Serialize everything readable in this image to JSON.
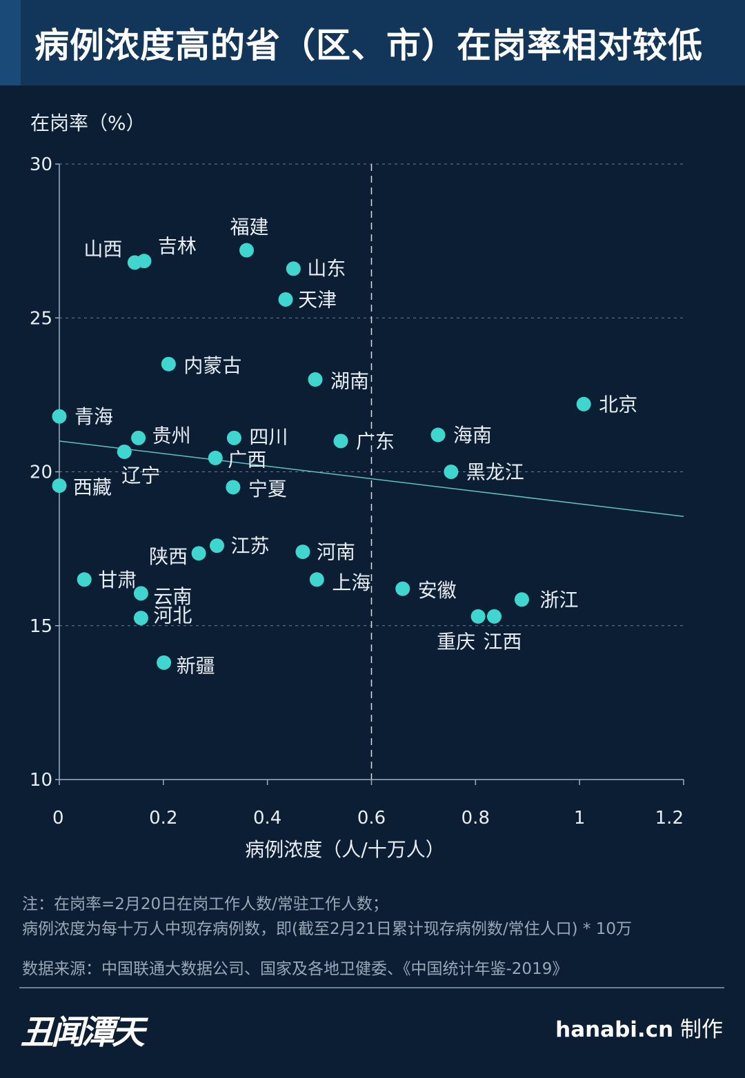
{
  "title": "病例浓度高的省（区、市）在岗率相对较低",
  "chart_data": {
    "type": "scatter",
    "ylabel": "在岗率（%）",
    "xlabel": "病例浓度（人/十万人）",
    "xlim": [
      0,
      1.2
    ],
    "ylim": [
      10,
      30
    ],
    "xticks": [
      "0",
      "0.2",
      "0.4",
      "0.6",
      "0.8",
      "1",
      "1.2"
    ],
    "yticks": [
      "10",
      "15",
      "20",
      "25",
      "30"
    ],
    "reference_line_x": 0.6,
    "trendline": {
      "x": [
        0,
        1.2
      ],
      "y": [
        21.0,
        18.55
      ]
    },
    "points": [
      {
        "label": "福建",
        "x": 0.36,
        "y": 27.2
      },
      {
        "label": "山西",
        "x": 0.145,
        "y": 26.8
      },
      {
        "label": "吉林",
        "x": 0.163,
        "y": 26.85
      },
      {
        "label": "山东",
        "x": 0.45,
        "y": 26.6
      },
      {
        "label": "天津",
        "x": 0.435,
        "y": 25.6
      },
      {
        "label": "内蒙古",
        "x": 0.21,
        "y": 23.5
      },
      {
        "label": "湖南",
        "x": 0.492,
        "y": 23.0
      },
      {
        "label": "北京",
        "x": 1.008,
        "y": 22.2
      },
      {
        "label": "青海",
        "x": 0.0,
        "y": 21.8
      },
      {
        "label": "贵州",
        "x": 0.152,
        "y": 21.1
      },
      {
        "label": "四川",
        "x": 0.336,
        "y": 21.1
      },
      {
        "label": "海南",
        "x": 0.728,
        "y": 21.2
      },
      {
        "label": "广东",
        "x": 0.541,
        "y": 21.0
      },
      {
        "label": "辽宁",
        "x": 0.125,
        "y": 20.65
      },
      {
        "label": "广西",
        "x": 0.3,
        "y": 20.45
      },
      {
        "label": "黑龙江",
        "x": 0.753,
        "y": 20.0
      },
      {
        "label": "西藏",
        "x": 0.0,
        "y": 19.55
      },
      {
        "label": "宁夏",
        "x": 0.334,
        "y": 19.5
      },
      {
        "label": "江苏",
        "x": 0.303,
        "y": 17.6
      },
      {
        "label": "陕西",
        "x": 0.268,
        "y": 17.35
      },
      {
        "label": "河南",
        "x": 0.468,
        "y": 17.4
      },
      {
        "label": "甘肃",
        "x": 0.048,
        "y": 16.5
      },
      {
        "label": "上海",
        "x": 0.495,
        "y": 16.5
      },
      {
        "label": "安徽",
        "x": 0.66,
        "y": 16.2
      },
      {
        "label": "云南",
        "x": 0.157,
        "y": 16.05
      },
      {
        "label": "浙江",
        "x": 0.889,
        "y": 15.85
      },
      {
        "label": "河北",
        "x": 0.157,
        "y": 15.25
      },
      {
        "label": "重庆",
        "x": 0.805,
        "y": 15.3
      },
      {
        "label": "江西",
        "x": 0.836,
        "y": 15.3
      },
      {
        "label": "新疆",
        "x": 0.201,
        "y": 13.8
      }
    ],
    "grid": "horizontal dashed",
    "legend": "none"
  },
  "notes": {
    "line1": "注：在岗率=2月20日在岗工作人数/常驻工作人数；",
    "line2": "病例浓度为每十万人中现存病例数，即(截至2月21日累计现存病例数/常住人口) * 10万",
    "source": "数据来源：中国联通大数据公司、国家及各地卫健委、《中国统计年鉴-2019》"
  },
  "footer": {
    "logo": "丑闻潭天",
    "site": "hanabi.cn",
    "credit": "制作"
  },
  "colors": {
    "background": "#0c1e33",
    "header": "#12355a",
    "point": "#3fd6cf",
    "trendline": "#5fc3c4",
    "axis": "#9fb0c3",
    "grid": "#6f8095",
    "text": "#e9eef5"
  }
}
